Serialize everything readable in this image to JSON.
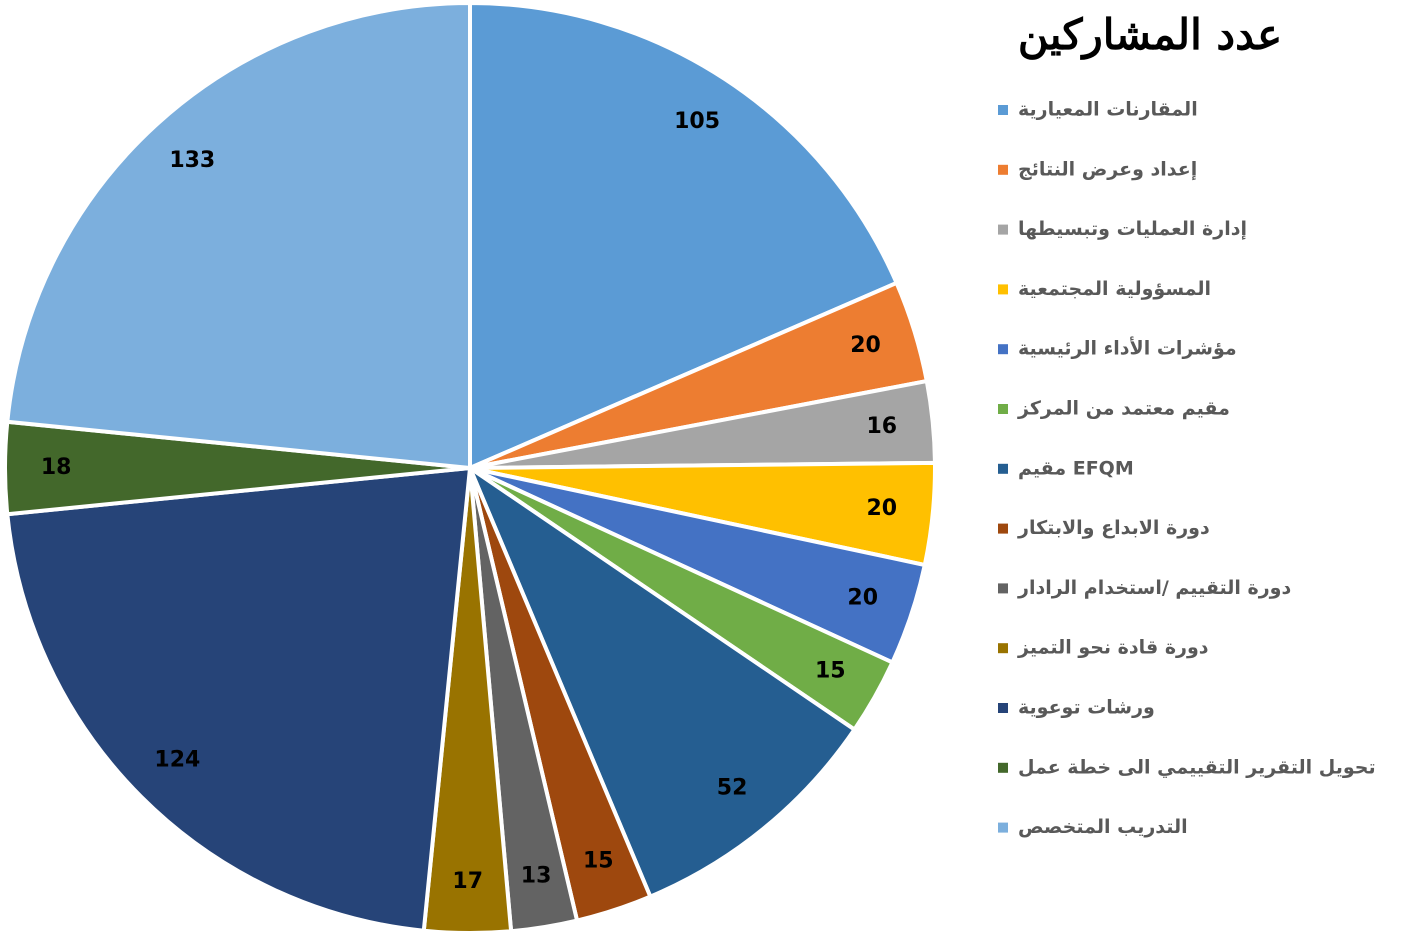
{
  "chart_data": {
    "type": "pie",
    "title": "عدد المشاركين",
    "categories": [
      "المقارنات المعيارية",
      "إعداد وعرض النتائج",
      "إدارة العمليات وتبسيطها",
      "المسؤولية المجتمعية",
      "مؤشرات الأداء الرئيسية",
      "مقيم معتمد من المركز",
      "مقيم EFQM",
      "دورة الابداع والابتكار",
      "دورة التقييم /استخدام الرادار",
      "دورة قادة نحو التميز",
      "ورشات توعوية",
      "تحويل التقرير التقييمي الى خطة عمل",
      "التدريب المتخصص"
    ],
    "values": [
      105,
      20,
      16,
      20,
      20,
      15,
      52,
      15,
      13,
      17,
      124,
      18,
      133
    ],
    "colors": [
      "#5b9bd5",
      "#ed7d31",
      "#a5a5a5",
      "#ffc000",
      "#4472c4",
      "#70ad47",
      "#255e91",
      "#9e480e",
      "#636363",
      "#997300",
      "#264478",
      "#43682b",
      "#7cafdd"
    ],
    "legend": "right"
  }
}
